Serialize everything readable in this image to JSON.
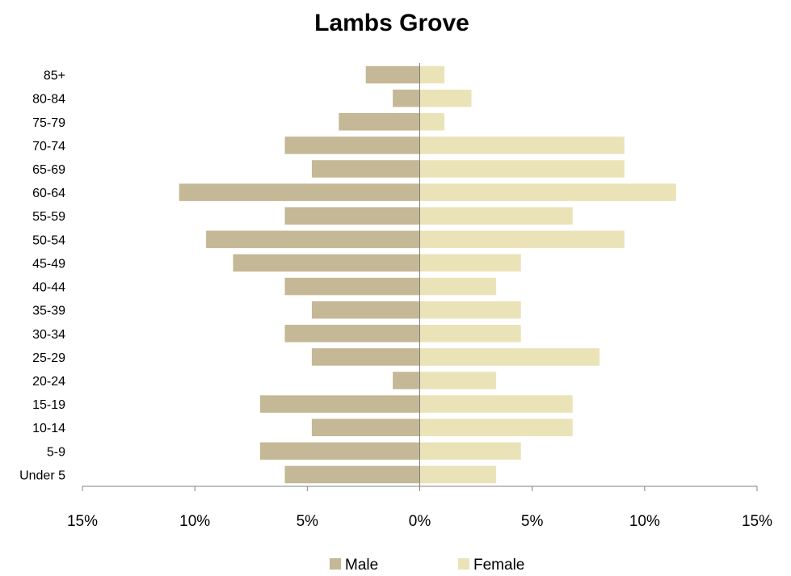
{
  "chart_data": {
    "type": "bar",
    "orientation": "horizontal",
    "title": "Lambs Grove",
    "categories": [
      "85+",
      "80-84",
      "75-79",
      "70-74",
      "65-69",
      "60-64",
      "55-59",
      "50-54",
      "45-49",
      "40-44",
      "35-39",
      "30-34",
      "25-29",
      "20-24",
      "15-19",
      "10-14",
      "5-9",
      "Under 5"
    ],
    "series": [
      {
        "name": "Male",
        "color": "#c5b896",
        "values": [
          2.4,
          1.2,
          3.6,
          6.0,
          4.8,
          10.7,
          6.0,
          9.5,
          8.3,
          6.0,
          4.8,
          6.0,
          4.8,
          1.2,
          7.1,
          4.8,
          7.1,
          6.0
        ]
      },
      {
        "name": "Female",
        "color": "#ebe3b8",
        "values": [
          1.1,
          2.3,
          1.1,
          9.1,
          9.1,
          11.4,
          6.8,
          9.1,
          4.5,
          3.4,
          4.5,
          4.5,
          8.0,
          3.4,
          6.8,
          6.8,
          4.5,
          3.4
        ]
      }
    ],
    "xlim": [
      -15,
      15
    ],
    "xticks": [
      -15,
      -10,
      -5,
      0,
      5,
      10,
      15
    ],
    "xtick_labels": [
      "15%",
      "10%",
      "5%",
      "0%",
      "5%",
      "10%",
      "15%"
    ],
    "xlabel": "",
    "ylabel": "",
    "grid": false,
    "legend": {
      "position": "bottom",
      "entries": [
        "Male",
        "Female"
      ]
    },
    "axis_color": "#808080"
  }
}
